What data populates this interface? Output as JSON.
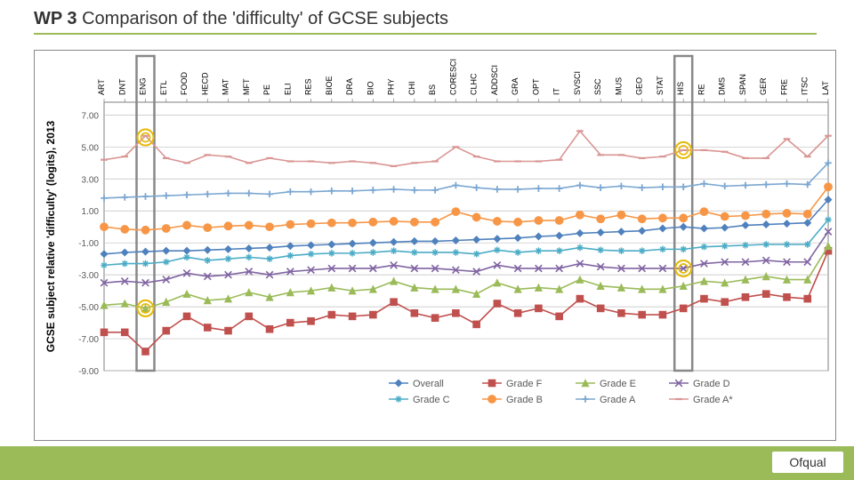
{
  "title_prefix": "WP 3",
  "title_main": "Comparison of the 'difficulty' of GCSE subjects",
  "logo_text": "Ofqual",
  "chart": {
    "type": "line",
    "ylabel": "GCSE subject relative 'difficulty' (logits), 2013",
    "ylabel_fontsize": 12,
    "ylim": [
      -9,
      7.8
    ],
    "ytick_step": 2,
    "yticks": [
      "-9.00",
      "-7.00",
      "-5.00",
      "-3.00",
      "-1.00",
      "1.00",
      "3.00",
      "5.00",
      "7.00"
    ],
    "yticks_vals": [
      -9,
      -7,
      -5,
      -3,
      -1,
      1,
      3,
      5,
      7
    ],
    "grid_color": "#bfbfbf",
    "axis_color": "#7f7f7f",
    "background_color": "#ffffff",
    "categories": [
      "ART",
      "DNT",
      "ENG",
      "ETL",
      "FOOD",
      "HECD",
      "MAT",
      "MFT",
      "PE",
      "ELI",
      "RES",
      "BIOE",
      "DRA",
      "BIO",
      "PHY",
      "CHI",
      "BS",
      "CORESCI",
      "CLHC",
      "ADDSCI",
      "GRA",
      "OPT",
      "IT",
      "SVSCI",
      "SSC",
      "MUS",
      "GEO",
      "STAT",
      "HIS",
      "RE",
      "DMS",
      "SPAN",
      "GER",
      "FRE",
      "ITSC",
      "LAT"
    ],
    "category_fontsize": 9,
    "highlight_boxes": [
      {
        "cat_index": 2,
        "color": "#888888"
      },
      {
        "cat_index": 28,
        "color": "#888888"
      }
    ],
    "circle_markers": [
      {
        "cat_index": 2,
        "y": 5.6,
        "stroke": "#e6b800"
      },
      {
        "cat_index": 2,
        "y": -5.1,
        "stroke": "#e6b800"
      },
      {
        "cat_index": 28,
        "y": 4.8,
        "stroke": "#e6b800"
      },
      {
        "cat_index": 28,
        "y": -2.6,
        "stroke": "#e6b800"
      }
    ],
    "series": [
      {
        "name": "Overall",
        "color": "#4f81bd",
        "marker": "diamond",
        "width": 1.6,
        "values": [
          -1.7,
          -1.6,
          -1.55,
          -1.5,
          -1.5,
          -1.45,
          -1.4,
          -1.35,
          -1.3,
          -1.2,
          -1.15,
          -1.1,
          -1.05,
          -1.0,
          -0.95,
          -0.9,
          -0.9,
          -0.85,
          -0.8,
          -0.75,
          -0.7,
          -0.6,
          -0.55,
          -0.4,
          -0.35,
          -0.3,
          -0.25,
          -0.1,
          0.0,
          -0.1,
          -0.05,
          0.1,
          0.15,
          0.2,
          0.25,
          1.7
        ]
      },
      {
        "name": "Grade F",
        "color": "#c0504d",
        "marker": "square",
        "width": 1.6,
        "values": [
          -6.6,
          -6.6,
          -7.8,
          -6.5,
          -5.6,
          -6.3,
          -6.5,
          -5.6,
          -6.4,
          -6.0,
          -5.9,
          -5.5,
          -5.6,
          -5.5,
          -4.7,
          -5.4,
          -5.7,
          -5.4,
          -6.1,
          -4.8,
          -5.4,
          -5.1,
          -5.6,
          -4.5,
          -5.1,
          -5.4,
          -5.5,
          -5.5,
          -5.1,
          -4.5,
          -4.7,
          -4.4,
          -4.2,
          -4.4,
          -4.5,
          -1.5
        ]
      },
      {
        "name": "Grade E",
        "color": "#9bbb59",
        "marker": "triangle",
        "width": 1.6,
        "values": [
          -4.9,
          -4.8,
          -5.1,
          -4.7,
          -4.2,
          -4.6,
          -4.5,
          -4.1,
          -4.4,
          -4.1,
          -4.0,
          -3.8,
          -4.0,
          -3.9,
          -3.4,
          -3.8,
          -3.9,
          -3.9,
          -4.2,
          -3.5,
          -3.9,
          -3.8,
          -3.9,
          -3.3,
          -3.7,
          -3.8,
          -3.9,
          -3.9,
          -3.7,
          -3.4,
          -3.5,
          -3.3,
          -3.1,
          -3.3,
          -3.3,
          -1.2
        ]
      },
      {
        "name": "Grade D",
        "color": "#8064a2",
        "marker": "cross",
        "width": 1.6,
        "values": [
          -3.5,
          -3.4,
          -3.5,
          -3.3,
          -2.9,
          -3.1,
          -3.0,
          -2.8,
          -3.0,
          -2.8,
          -2.7,
          -2.6,
          -2.6,
          -2.6,
          -2.4,
          -2.6,
          -2.6,
          -2.7,
          -2.8,
          -2.4,
          -2.6,
          -2.6,
          -2.6,
          -2.3,
          -2.5,
          -2.6,
          -2.6,
          -2.6,
          -2.6,
          -2.3,
          -2.2,
          -2.2,
          -2.1,
          -2.2,
          -2.2,
          -0.3
        ]
      },
      {
        "name": "Grade C",
        "color": "#4bacc6",
        "marker": "asterisk",
        "width": 1.6,
        "values": [
          -2.4,
          -2.3,
          -2.3,
          -2.2,
          -1.9,
          -2.1,
          -2.0,
          -1.9,
          -2.0,
          -1.8,
          -1.7,
          -1.65,
          -1.65,
          -1.6,
          -1.5,
          -1.6,
          -1.6,
          -1.6,
          -1.7,
          -1.45,
          -1.6,
          -1.5,
          -1.5,
          -1.3,
          -1.45,
          -1.5,
          -1.5,
          -1.4,
          -1.4,
          -1.25,
          -1.2,
          -1.15,
          -1.1,
          -1.1,
          -1.1,
          0.45
        ]
      },
      {
        "name": "Grade B",
        "color": "#f79646",
        "marker": "circle",
        "width": 1.6,
        "values": [
          0.0,
          -0.15,
          -0.2,
          -0.1,
          0.1,
          -0.05,
          0.05,
          0.1,
          0.0,
          0.15,
          0.2,
          0.25,
          0.25,
          0.3,
          0.35,
          0.3,
          0.3,
          0.95,
          0.6,
          0.35,
          0.3,
          0.4,
          0.4,
          0.75,
          0.5,
          0.75,
          0.5,
          0.55,
          0.55,
          0.95,
          0.65,
          0.7,
          0.8,
          0.85,
          0.8,
          2.5
        ]
      },
      {
        "name": "Grade A",
        "color": "#7ba7d1",
        "marker": "plus",
        "width": 1.6,
        "values": [
          1.8,
          1.85,
          1.9,
          1.95,
          2.0,
          2.05,
          2.1,
          2.1,
          2.05,
          2.2,
          2.2,
          2.25,
          2.25,
          2.3,
          2.35,
          2.3,
          2.3,
          2.6,
          2.45,
          2.35,
          2.35,
          2.4,
          2.4,
          2.6,
          2.45,
          2.55,
          2.45,
          2.5,
          2.5,
          2.7,
          2.55,
          2.6,
          2.65,
          2.7,
          2.65,
          4.0
        ]
      },
      {
        "name": "Grade A*",
        "color": "#d99694",
        "marker": "dash",
        "width": 1.6,
        "values": [
          4.2,
          4.4,
          5.7,
          4.3,
          4.0,
          4.5,
          4.4,
          4.0,
          4.3,
          4.1,
          4.1,
          4.0,
          4.1,
          4.0,
          3.8,
          4.0,
          4.1,
          5.0,
          4.4,
          4.1,
          4.1,
          4.1,
          4.2,
          6.0,
          4.5,
          4.5,
          4.3,
          4.4,
          4.8,
          4.8,
          4.7,
          4.3,
          4.3,
          5.5,
          4.4,
          5.7
        ]
      }
    ],
    "legend": {
      "fontsize": 11,
      "text_color": "#595959",
      "items": [
        "Overall",
        "Grade F",
        "Grade E",
        "Grade D",
        "Grade C",
        "Grade B",
        "Grade A",
        "Grade A*"
      ]
    }
  }
}
